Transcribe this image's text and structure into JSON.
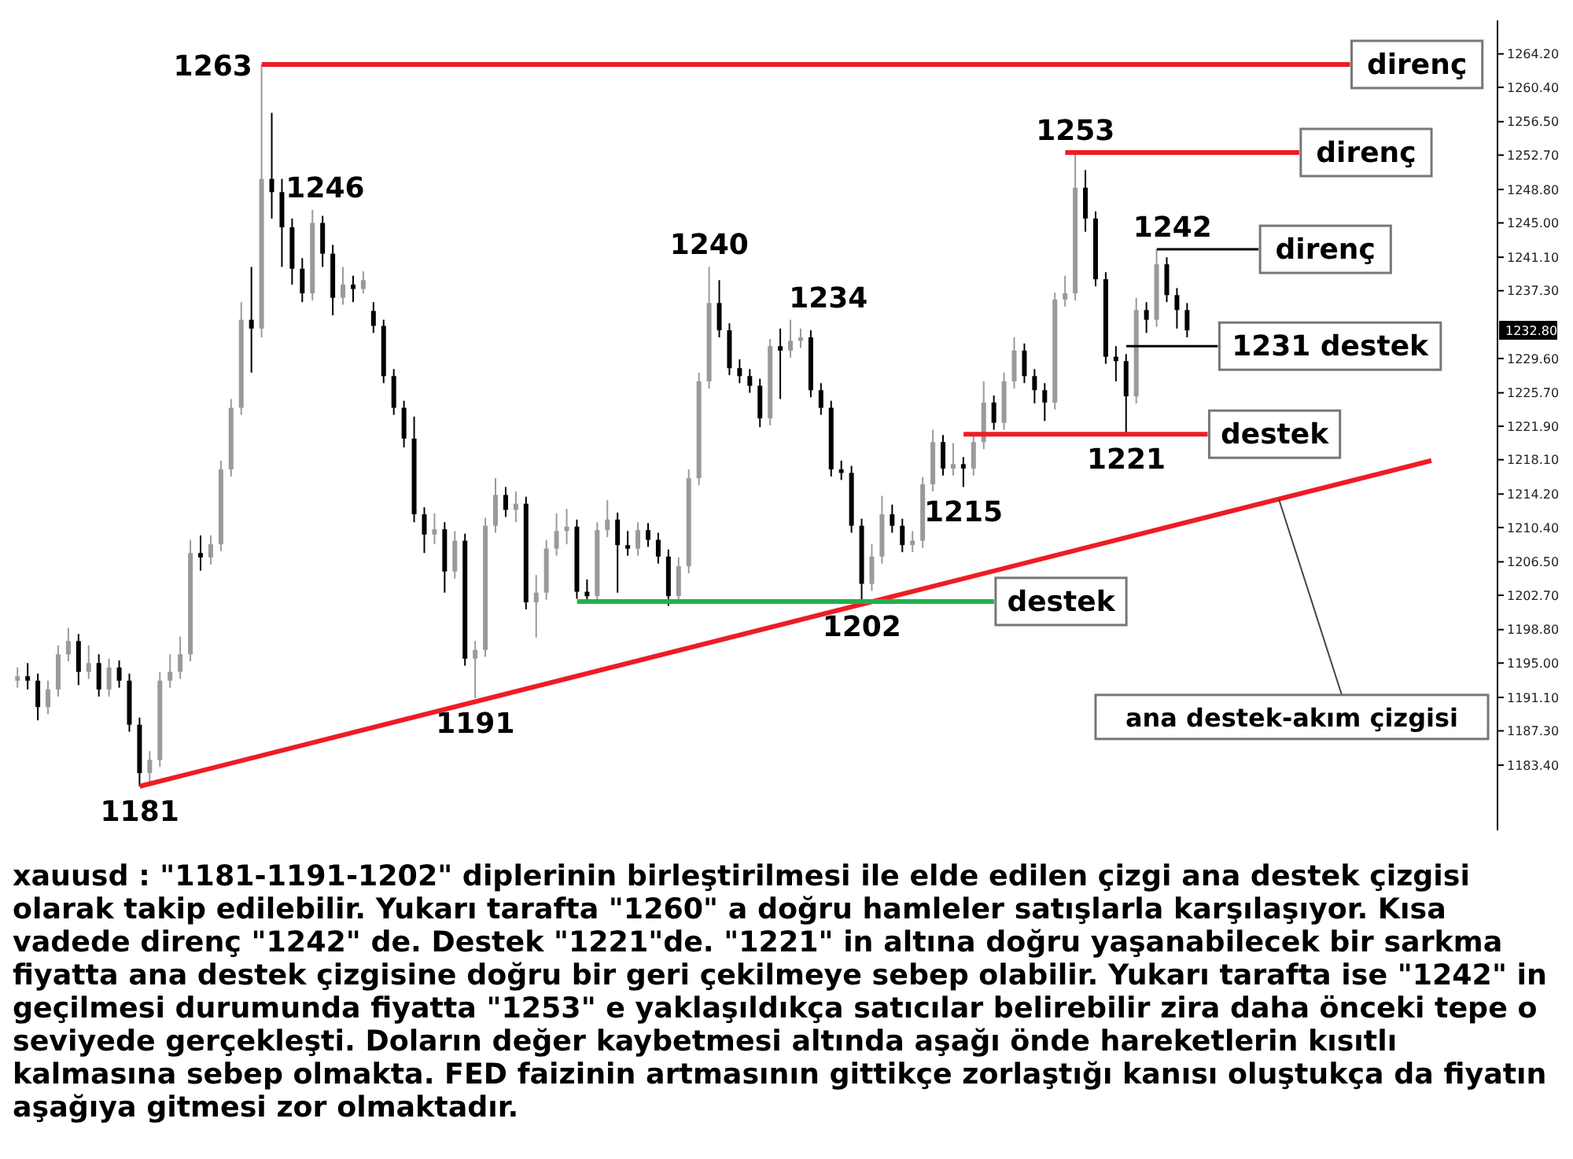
{
  "chart_data": {
    "type": "candlestick",
    "categories": [
      null,
      null,
      null,
      null,
      null,
      null,
      null,
      null,
      null,
      null,
      null,
      null,
      null,
      null,
      null,
      null,
      null,
      null,
      null,
      null,
      null,
      null,
      null,
      null,
      null,
      null,
      null,
      null,
      null,
      null,
      null,
      null,
      null,
      null,
      null,
      null,
      null,
      null,
      null,
      null,
      null,
      null,
      null,
      null,
      null,
      null,
      null,
      null,
      null,
      null,
      null,
      null,
      null,
      null,
      null,
      null,
      null,
      null,
      null,
      null,
      null,
      null,
      null,
      null,
      null,
      null,
      null,
      null,
      null,
      null,
      null,
      null,
      null,
      null,
      null,
      null,
      null,
      null,
      null,
      null,
      null,
      null,
      null,
      null,
      null,
      null,
      null,
      null,
      null,
      null,
      null,
      null,
      null,
      null,
      null,
      null,
      null,
      null,
      null,
      null,
      null,
      null,
      null,
      null,
      null,
      null,
      null,
      null,
      null,
      null,
      null,
      null,
      null,
      null,
      null,
      null,
      null,
      null,
      null,
      null,
      null,
      null,
      null,
      null,
      null,
      null,
      null,
      null,
      null,
      null,
      null,
      null,
      null,
      null,
      null,
      null,
      null,
      null,
      null,
      null,
      null,
      null,
      null,
      null,
      null,
      null
    ],
    "ohlc": [
      [
        1193,
        1194.5,
        1192.2,
        1193.5
      ],
      [
        1193.5,
        1195,
        1192,
        1193
      ],
      [
        1193,
        1193.8,
        1188.5,
        1190
      ],
      [
        1190,
        1193,
        1189.2,
        1192
      ],
      [
        1192,
        1197,
        1191.2,
        1196
      ],
      [
        1196,
        1199,
        1195.2,
        1197.5
      ],
      [
        1197.5,
        1198.3,
        1192.5,
        1194
      ],
      [
        1194,
        1197,
        1193.2,
        1195
      ],
      [
        1195,
        1196,
        1191.2,
        1192
      ],
      [
        1192,
        1195.5,
        1191.2,
        1194.5
      ],
      [
        1194.5,
        1195.3,
        1192.2,
        1193
      ],
      [
        1193,
        1193.8,
        1187.2,
        1188
      ],
      [
        1188,
        1188.8,
        1181,
        1182.5
      ],
      [
        1182.5,
        1185,
        1181.5,
        1184
      ],
      [
        1184,
        1194,
        1183.2,
        1193
      ],
      [
        1193,
        1196,
        1192.2,
        1194
      ],
      [
        1194,
        1198,
        1193.2,
        1196
      ],
      [
        1196,
        1209,
        1195.2,
        1207.5
      ],
      [
        1207.5,
        1209.5,
        1205.5,
        1207
      ],
      [
        1207,
        1209.5,
        1206.2,
        1208.5
      ],
      [
        1208.5,
        1218,
        1207.7,
        1217
      ],
      [
        1217,
        1225,
        1216.2,
        1224
      ],
      [
        1224,
        1236,
        1223.2,
        1234
      ],
      [
        1234,
        1240,
        1228,
        1233
      ],
      [
        1233,
        1263,
        1232,
        1250
      ],
      [
        1250,
        1257.5,
        1245.5,
        1248.5
      ],
      [
        1248.5,
        1250,
        1240,
        1244.5
      ],
      [
        1244.5,
        1245.5,
        1238,
        1239.8
      ],
      [
        1239.8,
        1241,
        1236,
        1237
      ],
      [
        1237,
        1246.5,
        1236.2,
        1245
      ],
      [
        1245,
        1245.8,
        1240,
        1241.5
      ],
      [
        1241.5,
        1242.5,
        1234.5,
        1236.5
      ],
      [
        1236.5,
        1240,
        1235.7,
        1238
      ],
      [
        1238,
        1239,
        1236,
        1237.5
      ],
      [
        1237.5,
        1239.5,
        1237,
        1238.5
      ],
      [
        1235,
        1236,
        1232.5,
        1233.3
      ],
      [
        1233.3,
        1234,
        1226.8,
        1227.6
      ],
      [
        1227.6,
        1228.4,
        1223.2,
        1224
      ],
      [
        1224,
        1224.8,
        1219.5,
        1220.5
      ],
      [
        1220.5,
        1223,
        1211,
        1211.9
      ],
      [
        1211.9,
        1212.7,
        1207.5,
        1209.6
      ],
      [
        1209.6,
        1212,
        1208.5,
        1210.2
      ],
      [
        1210.2,
        1211,
        1203,
        1205.4
      ],
      [
        1205.4,
        1210,
        1204.6,
        1208.9
      ],
      [
        1208.9,
        1209.7,
        1194.7,
        1195.5
      ],
      [
        1195.5,
        1197.5,
        1191,
        1196.5
      ],
      [
        1196.5,
        1211.5,
        1195.7,
        1210.6
      ],
      [
        1210.6,
        1216,
        1209.8,
        1214.1
      ],
      [
        1214.1,
        1215,
        1211.6,
        1212.4
      ],
      [
        1212.4,
        1214.5,
        1211,
        1213.1
      ],
      [
        1213.1,
        1213.9,
        1201.1,
        1201.9
      ],
      [
        1201.9,
        1205,
        1197.9,
        1203
      ],
      [
        1203,
        1209,
        1202.2,
        1208
      ],
      [
        1208,
        1212,
        1207.2,
        1210
      ],
      [
        1210,
        1212.5,
        1208.5,
        1210.5
      ],
      [
        1210.5,
        1211.3,
        1202.3,
        1203.1
      ],
      [
        1203.1,
        1204.5,
        1201.8,
        1202.6
      ],
      [
        1202.6,
        1211,
        1201.8,
        1210.1
      ],
      [
        1210.1,
        1213.5,
        1209.3,
        1211.3
      ],
      [
        1211.3,
        1212.1,
        1203,
        1208.4
      ],
      [
        1208.4,
        1210,
        1207.2,
        1208
      ],
      [
        1208,
        1211,
        1207.2,
        1210.1
      ],
      [
        1210.1,
        1210.9,
        1208.2,
        1209
      ],
      [
        1209,
        1209.8,
        1206.3,
        1207.1
      ],
      [
        1207.1,
        1207.9,
        1201.5,
        1202.6
      ],
      [
        1202.6,
        1207,
        1201.8,
        1206
      ],
      [
        1206,
        1217,
        1205.2,
        1216
      ],
      [
        1216,
        1228,
        1215.2,
        1227
      ],
      [
        1227,
        1240,
        1226.2,
        1235.9
      ],
      [
        1235.9,
        1238.5,
        1232,
        1232.8
      ],
      [
        1232.8,
        1233.6,
        1227.7,
        1228.5
      ],
      [
        1228.5,
        1229.5,
        1226.8,
        1227.6
      ],
      [
        1227.6,
        1228.4,
        1225.7,
        1226.5
      ],
      [
        1226.5,
        1227.3,
        1221.8,
        1222.8
      ],
      [
        1222.8,
        1231.8,
        1222,
        1231
      ],
      [
        1231,
        1233,
        1225,
        1230.5
      ],
      [
        1230.5,
        1234,
        1229.7,
        1231.6
      ],
      [
        1231.6,
        1233,
        1230.8,
        1232
      ],
      [
        1232,
        1232.8,
        1225.2,
        1226
      ],
      [
        1226,
        1226.8,
        1223.2,
        1224
      ],
      [
        1224,
        1224.8,
        1216.2,
        1217
      ],
      [
        1217,
        1218,
        1215.8,
        1216.6
      ],
      [
        1216.6,
        1217.4,
        1209.8,
        1210.6
      ],
      [
        1210.6,
        1211.4,
        1202,
        1204
      ],
      [
        1204,
        1208.5,
        1203.2,
        1207.1
      ],
      [
        1207.1,
        1214,
        1206.3,
        1211.9
      ],
      [
        1211.9,
        1213,
        1209.8,
        1210.6
      ],
      [
        1210.6,
        1211.4,
        1207.6,
        1208.4
      ],
      [
        1208.4,
        1210,
        1207.6,
        1208.9
      ],
      [
        1208.9,
        1216.1,
        1208.1,
        1215.3
      ],
      [
        1215.3,
        1221.5,
        1214.5,
        1220.1
      ],
      [
        1220.1,
        1220.9,
        1216.3,
        1217.1
      ],
      [
        1217.1,
        1220,
        1216.3,
        1217.6
      ],
      [
        1217.6,
        1218.4,
        1215,
        1217.1
      ],
      [
        1217.1,
        1221,
        1216.3,
        1220.1
      ],
      [
        1220.1,
        1227,
        1219.3,
        1224.6
      ],
      [
        1224.6,
        1225.4,
        1221.5,
        1222.3
      ],
      [
        1222.3,
        1228,
        1221.5,
        1227
      ],
      [
        1227,
        1232,
        1226.2,
        1230.5
      ],
      [
        1230.5,
        1231.3,
        1226.8,
        1227.6
      ],
      [
        1227.6,
        1228.4,
        1224.5,
        1226
      ],
      [
        1226,
        1226.8,
        1222.5,
        1224.6
      ],
      [
        1224.6,
        1237.1,
        1223.8,
        1236.3
      ],
      [
        1236.3,
        1239,
        1235.5,
        1237
      ],
      [
        1237,
        1253,
        1236.2,
        1249
      ],
      [
        1249,
        1251,
        1244,
        1245.5
      ],
      [
        1245.5,
        1246.3,
        1237.8,
        1238.6
      ],
      [
        1238.6,
        1239.4,
        1229,
        1229.8
      ],
      [
        1229.8,
        1231,
        1227,
        1229.3
      ],
      [
        1229.3,
        1230.1,
        1221,
        1225.3
      ],
      [
        1225.3,
        1236.5,
        1224.5,
        1235.1
      ],
      [
        1235.1,
        1236,
        1232.5,
        1234
      ],
      [
        1234,
        1242,
        1233.2,
        1240.3
      ],
      [
        1240.3,
        1241.1,
        1236,
        1236.8
      ],
      [
        1236.8,
        1237.6,
        1233,
        1235.1
      ],
      [
        1235.1,
        1235.9,
        1232,
        1232.8
      ],
      null,
      null,
      null,
      null,
      null,
      null,
      null,
      null,
      null,
      null,
      null,
      null,
      null,
      null,
      null,
      null,
      null,
      null,
      null,
      null,
      null,
      null,
      null,
      null,
      null,
      null,
      null,
      null,
      null,
      null
    ],
    "colors": [
      "#9a9a9a",
      "#000000",
      "#000000",
      "#9a9a9a",
      "#9a9a9a",
      "#9a9a9a",
      "#000000",
      "#9a9a9a",
      "#000000",
      "#9a9a9a",
      "#000000",
      "#000000",
      "#000000",
      "#9a9a9a",
      "#9a9a9a",
      "#9a9a9a",
      "#9a9a9a",
      "#9a9a9a",
      "#000000",
      "#9a9a9a",
      "#9a9a9a",
      "#9a9a9a",
      "#9a9a9a",
      "#000000",
      "#9a9a9a",
      "#000000",
      "#000000",
      "#000000",
      "#000000",
      "#9a9a9a",
      "#000000",
      "#000000",
      "#9a9a9a",
      "#000000",
      "#9a9a9a",
      "#000000",
      "#000000",
      "#000000",
      "#000000",
      "#000000",
      "#000000",
      "#9a9a9a",
      "#000000",
      "#9a9a9a",
      "#000000",
      "#9a9a9a",
      "#9a9a9a",
      "#9a9a9a",
      "#000000",
      "#9a9a9a",
      "#000000",
      "#9a9a9a",
      "#9a9a9a",
      "#9a9a9a",
      "#9a9a9a",
      "#000000",
      "#000000",
      "#9a9a9a",
      "#9a9a9a",
      "#000000",
      "#000000",
      "#9a9a9a",
      "#000000",
      "#000000",
      "#000000",
      "#9a9a9a",
      "#9a9a9a",
      "#9a9a9a",
      "#9a9a9a",
      "#000000",
      "#000000",
      "#000000",
      "#000000",
      "#000000",
      "#9a9a9a",
      "#000000",
      "#9a9a9a",
      "#9a9a9a",
      "#000000",
      "#000000",
      "#000000",
      "#000000",
      "#000000",
      "#000000",
      "#9a9a9a",
      "#9a9a9a",
      "#000000",
      "#000000",
      "#9a9a9a",
      "#9a9a9a",
      "#9a9a9a",
      "#000000",
      "#9a9a9a",
      "#000000",
      "#9a9a9a",
      "#9a9a9a",
      "#000000",
      "#9a9a9a",
      "#9a9a9a",
      "#000000",
      "#000000",
      "#000000",
      "#9a9a9a",
      "#9a9a9a",
      "#9a9a9a",
      "#000000",
      "#000000",
      "#000000",
      "#000000",
      "#000000",
      "#9a9a9a",
      "#000000",
      "#9a9a9a",
      "#000000",
      "#000000",
      "#000000",
      null,
      null,
      null,
      null,
      null,
      null,
      null,
      null,
      null,
      null,
      null,
      null,
      null,
      null,
      null,
      null,
      null,
      null,
      null,
      null,
      null,
      null,
      null,
      null,
      null,
      null,
      null,
      null,
      null,
      null
    ],
    "series": [
      {
        "type": "line",
        "color": "#ee1c25",
        "values": [
          null,
          null,
          null,
          null,
          null,
          null,
          null,
          null,
          null,
          null,
          null,
          null,
          1181,
          null,
          null,
          null,
          null,
          null,
          null,
          null,
          null,
          null,
          null,
          null,
          null,
          null,
          null,
          null,
          null,
          null,
          null,
          null,
          null,
          null,
          null,
          null,
          null,
          null,
          null,
          null,
          null,
          null,
          null,
          null,
          null,
          null,
          null,
          null,
          null,
          null,
          null,
          null,
          null,
          null,
          null,
          null,
          null,
          null,
          null,
          null,
          null,
          null,
          null,
          null,
          null,
          null,
          null,
          null,
          null,
          null,
          null,
          null,
          null,
          null,
          null,
          null,
          null,
          null,
          null,
          null,
          null,
          null,
          null,
          null,
          null,
          null,
          null,
          null,
          null,
          null,
          null,
          null,
          null,
          null,
          null,
          null,
          null,
          null,
          null,
          null,
          null,
          null,
          null,
          null,
          null,
          null,
          null,
          null,
          null,
          null,
          null,
          null,
          null,
          null,
          null,
          null,
          null,
          null,
          null,
          null,
          null,
          null,
          null,
          null,
          null,
          null,
          null,
          null,
          null,
          null,
          null,
          null,
          null,
          null,
          null,
          null,
          null,
          null,
          null,
          1218,
          null,
          null,
          null,
          null,
          null,
          null
        ]
      }
    ],
    "ylim": [
      1176,
      1268
    ],
    "yticks": [
      {
        "value": 1264.2,
        "label": "1264.20"
      },
      {
        "value": 1260.4,
        "label": "1260.40"
      },
      {
        "value": 1256.5,
        "label": "1256.50"
      },
      {
        "value": 1252.7,
        "label": "1252.70"
      },
      {
        "value": 1248.8,
        "label": "1248.80"
      },
      {
        "value": 1245,
        "label": "1245.00"
      },
      {
        "value": 1241.1,
        "label": "1241.10"
      },
      {
        "value": 1237.3,
        "label": "1237.30"
      },
      {
        "value": 1229.6,
        "label": "1229.60"
      },
      {
        "value": 1225.7,
        "label": "1225.70"
      },
      {
        "value": 1221.9,
        "label": "1221.90"
      },
      {
        "value": 1218.1,
        "label": "1218.10"
      },
      {
        "value": 1214.2,
        "label": "1214.20"
      },
      {
        "value": 1210.4,
        "label": "1210.40"
      },
      {
        "value": 1206.5,
        "label": "1206.50"
      },
      {
        "value": 1202.7,
        "label": "1202.70"
      },
      {
        "value": 1198.8,
        "label": "1198.80"
      },
      {
        "value": 1195,
        "label": "1195.00"
      },
      {
        "value": 1191.1,
        "label": "1191.10"
      },
      {
        "value": 1187.3,
        "label": "1187.30"
      },
      {
        "value": 1183.4,
        "label": "1183.40"
      }
    ],
    "tick_labels": "y",
    "ref_lines": [
      {
        "axis": "y",
        "value": 1263,
        "label": "direnç",
        "color": "#ee1c25"
      },
      {
        "axis": "y",
        "value": 1253,
        "label": "direnç",
        "color": "#ee1c25"
      },
      {
        "axis": "y",
        "value": 1242,
        "label": "direnç",
        "color": "#000000"
      },
      {
        "axis": "y",
        "value": 1231,
        "label": "1231 destek",
        "color": "#000000"
      },
      {
        "axis": "y",
        "value": 1221,
        "label": "destek",
        "color": "#ee1c25"
      },
      {
        "axis": "y",
        "value": 1202,
        "label": "destek",
        "color": "#22b14c"
      }
    ],
    "annotations": [
      "1263",
      "1246",
      "1240",
      "1234",
      "1253",
      "1242",
      "1181",
      "1191",
      "1202",
      "1215",
      "1221",
      "1232.80",
      "ana destek-akım çizgisi",
      "xauusd : \"1181-1191-1202\" diplerinin birleştirilmesi ile elde edilen çizgi ana destek çizgisi olarak takip edilebilir. Yukarı tarafta \"1260\" a doğru hamleler satışlarla karşılaşıyor. Kısa vadede direnç \"1242\" de. Destek \"1221\"de. \"1221\" in altına doğru yaşanabilecek bir sarkma fiyatta ana destek çizgisine doğru bir geri çekilmeye sebep olabilir. Yukarı tarafta ise \"1242\" in geçilmesi durumunda fiyatta \"1253\" e yaklaşıldıkça satıcılar belirebilir zira daha önceki tepe o seviyede gerçekleşti. Doların değer kaybetmesi altında aşağı önde hareketlerin kısıtlı kalmasına sebep olmakta. FED faizinin artmasının gittikçe zorlaştığı kanısı oluştukça da fiyatın aşağıya gitmesi zor olmaktadır."
    ]
  }
}
